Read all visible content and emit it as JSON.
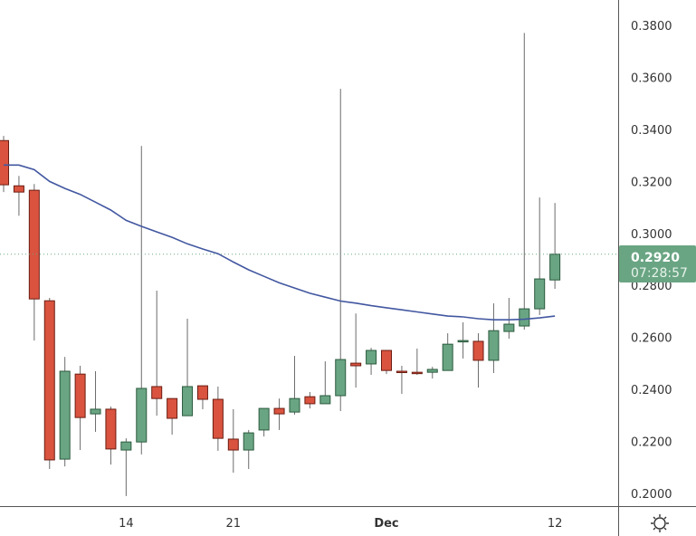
{
  "chart_data": {
    "type": "candlestick",
    "title": "",
    "xlabel": "",
    "ylabel": "",
    "ylim": [
      0.1975,
      0.3895
    ],
    "grid": false,
    "y_ticks": [
      "0.2000",
      "0.2200",
      "0.2400",
      "0.2600",
      "0.2800",
      "0.3000",
      "0.3200",
      "0.3400",
      "0.3600",
      "0.3800"
    ],
    "x_ticks": [
      {
        "label": "14",
        "index": 8
      },
      {
        "label": "21",
        "index": 15
      },
      {
        "label": "Dec",
        "index": 25
      },
      {
        "label": "12",
        "index": 36
      }
    ],
    "candles": [
      {
        "o": 0.3357,
        "h": 0.3375,
        "l": 0.3159,
        "c": 0.3187
      },
      {
        "o": 0.3183,
        "h": 0.3221,
        "l": 0.3068,
        "c": 0.3159
      },
      {
        "o": 0.3166,
        "h": 0.319,
        "l": 0.2588,
        "c": 0.2748
      },
      {
        "o": 0.2741,
        "h": 0.2752,
        "l": 0.2094,
        "c": 0.2129
      },
      {
        "o": 0.2132,
        "h": 0.2525,
        "l": 0.2104,
        "c": 0.247
      },
      {
        "o": 0.2459,
        "h": 0.2491,
        "l": 0.2167,
        "c": 0.2292
      },
      {
        "o": 0.2306,
        "h": 0.247,
        "l": 0.2237,
        "c": 0.2324
      },
      {
        "o": 0.2324,
        "h": 0.2334,
        "l": 0.2111,
        "c": 0.2171
      },
      {
        "o": 0.2167,
        "h": 0.2212,
        "l": 0.199,
        "c": 0.2198
      },
      {
        "o": 0.2198,
        "h": 0.3336,
        "l": 0.215,
        "c": 0.2404
      },
      {
        "o": 0.2411,
        "h": 0.278,
        "l": 0.2299,
        "c": 0.2365
      },
      {
        "o": 0.2365,
        "h": 0.2365,
        "l": 0.2226,
        "c": 0.2289
      },
      {
        "o": 0.2299,
        "h": 0.2672,
        "l": 0.2299,
        "c": 0.2411
      },
      {
        "o": 0.2414,
        "h": 0.2414,
        "l": 0.2324,
        "c": 0.2362
      },
      {
        "o": 0.2362,
        "h": 0.2411,
        "l": 0.2164,
        "c": 0.2212
      },
      {
        "o": 0.2209,
        "h": 0.2324,
        "l": 0.208,
        "c": 0.2167
      },
      {
        "o": 0.2167,
        "h": 0.2244,
        "l": 0.2094,
        "c": 0.2233
      },
      {
        "o": 0.2244,
        "h": 0.2327,
        "l": 0.2219,
        "c": 0.2327
      },
      {
        "o": 0.2327,
        "h": 0.2365,
        "l": 0.2244,
        "c": 0.2306
      },
      {
        "o": 0.2313,
        "h": 0.2529,
        "l": 0.2303,
        "c": 0.2365
      },
      {
        "o": 0.2372,
        "h": 0.239,
        "l": 0.2327,
        "c": 0.2345
      },
      {
        "o": 0.2345,
        "h": 0.2508,
        "l": 0.2345,
        "c": 0.2376
      },
      {
        "o": 0.2376,
        "h": 0.3556,
        "l": 0.2317,
        "c": 0.2515
      },
      {
        "o": 0.2501,
        "h": 0.2692,
        "l": 0.2407,
        "c": 0.2491
      },
      {
        "o": 0.2498,
        "h": 0.256,
        "l": 0.2456,
        "c": 0.255
      },
      {
        "o": 0.255,
        "h": 0.255,
        "l": 0.2459,
        "c": 0.2473
      },
      {
        "o": 0.247,
        "h": 0.2491,
        "l": 0.2383,
        "c": 0.2466
      },
      {
        "o": 0.2466,
        "h": 0.2557,
        "l": 0.2456,
        "c": 0.2463
      },
      {
        "o": 0.2466,
        "h": 0.2487,
        "l": 0.2442,
        "c": 0.2477
      },
      {
        "o": 0.2473,
        "h": 0.2616,
        "l": 0.2473,
        "c": 0.2574
      },
      {
        "o": 0.2585,
        "h": 0.2658,
        "l": 0.2519,
        "c": 0.2588
      },
      {
        "o": 0.2585,
        "h": 0.2616,
        "l": 0.2407,
        "c": 0.2512
      },
      {
        "o": 0.2512,
        "h": 0.2731,
        "l": 0.2463,
        "c": 0.2626
      },
      {
        "o": 0.2623,
        "h": 0.2752,
        "l": 0.2595,
        "c": 0.2651
      },
      {
        "o": 0.2644,
        "h": 0.3771,
        "l": 0.263,
        "c": 0.271
      },
      {
        "o": 0.271,
        "h": 0.3138,
        "l": 0.2686,
        "c": 0.2825
      },
      {
        "o": 0.2821,
        "h": 0.3117,
        "l": 0.2787,
        "c": 0.292
      }
    ],
    "moving_average": [
      0.3263,
      0.3263,
      0.3245,
      0.32,
      0.3173,
      0.315,
      0.312,
      0.309,
      0.305,
      0.3027,
      0.3006,
      0.2985,
      0.296,
      0.294,
      0.2922,
      0.289,
      0.286,
      0.2835,
      0.281,
      0.279,
      0.277,
      0.2755,
      0.274,
      0.2732,
      0.2722,
      0.2714,
      0.2706,
      0.2698,
      0.269,
      0.2682,
      0.2679,
      0.2672,
      0.2668,
      0.2668,
      0.267,
      0.2675,
      0.2682
    ],
    "last_price": {
      "value": 0.292,
      "label": "0.2920",
      "countdown": "07:28:57"
    },
    "colors": {
      "up": "#6aa583",
      "up_border": "#2b5a3e",
      "down": "#d9533f",
      "down_border": "#6b1d12",
      "wick": "#6b6b6b",
      "ma": "#4257a0",
      "price_label": "#6aa583"
    }
  },
  "toolbar": {
    "settings_icon": "sun-settings-icon"
  }
}
